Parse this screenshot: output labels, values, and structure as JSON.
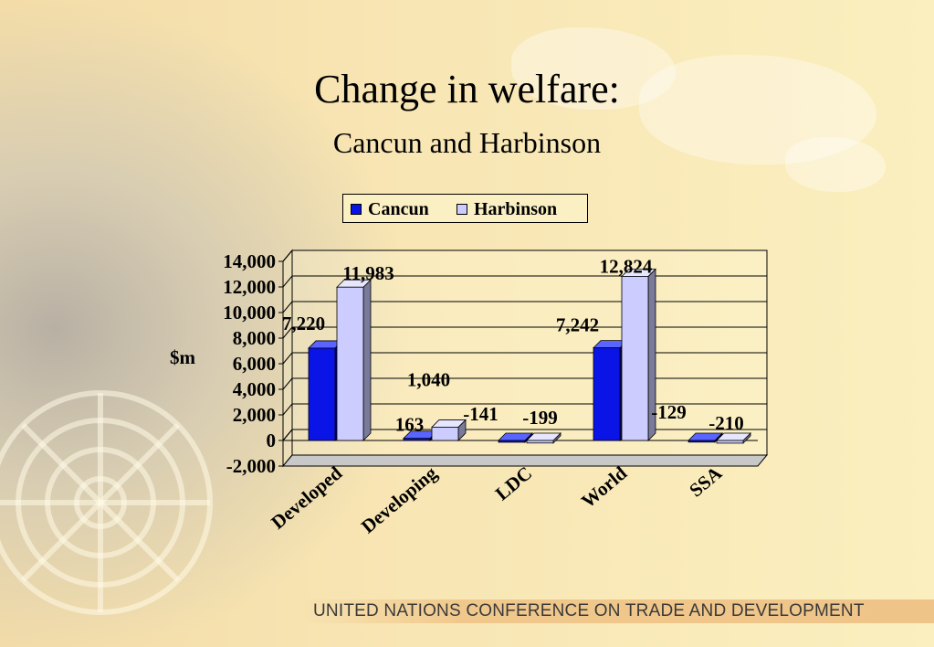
{
  "slide": {
    "title": "Change in welfare:",
    "subtitle": "Cancun and Harbinson",
    "footer": "UNITED NATIONS CONFERENCE ON TRADE AND DEVELOPMENT"
  },
  "colors": {
    "cancun": "#0a14e6",
    "harbinson": "#ccccff",
    "axis": "#000000"
  },
  "chart_data": {
    "type": "bar",
    "title": "",
    "xlabel": "",
    "ylabel": "$m",
    "ylim": [
      -2000,
      14000
    ],
    "yticks": [
      -2000,
      0,
      2000,
      4000,
      6000,
      8000,
      10000,
      12000,
      14000
    ],
    "ytick_labels": [
      "-2,000",
      "0",
      "2,000",
      "4,000",
      "6,000",
      "8,000",
      "10,000",
      "12,000",
      "14,000"
    ],
    "grid": true,
    "legend": "top-center",
    "three_d": true,
    "categories": [
      "Developed",
      "Developing",
      "LDC",
      "World",
      "SSA"
    ],
    "series": [
      {
        "name": "Cancun",
        "values": [
          7220,
          163,
          -141,
          7242,
          -129
        ],
        "labels": [
          "7,220",
          "163",
          "-141",
          "7,242",
          "-129"
        ]
      },
      {
        "name": "Harbinson",
        "values": [
          11983,
          1040,
          -199,
          12824,
          -210
        ],
        "labels": [
          "11,983",
          "1,040",
          "-199",
          "12,824",
          "-210"
        ]
      }
    ]
  }
}
